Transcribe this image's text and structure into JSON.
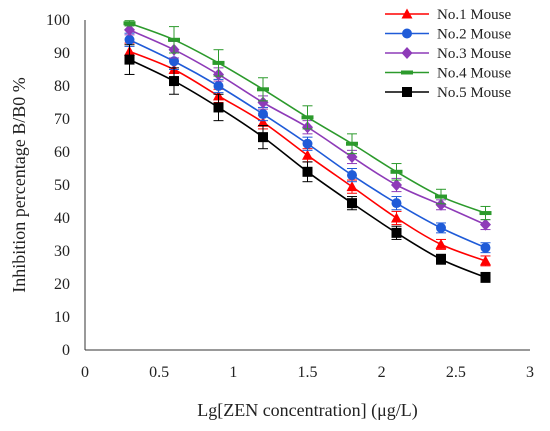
{
  "chart_data": {
    "type": "line",
    "xlabel": "Lg[ZEN concentration] (μg/L)",
    "ylabel": "Inhibition percentage B/B0 %",
    "xlim": [
      0,
      3
    ],
    "ylim": [
      0,
      100
    ],
    "x_ticks": [
      0,
      0.5,
      1,
      1.5,
      2,
      2.5,
      3
    ],
    "x_tick_labels": [
      "0",
      "0.5",
      "1",
      "1.5",
      "2",
      "2.5",
      "3"
    ],
    "y_ticks": [
      0,
      10,
      20,
      30,
      40,
      50,
      60,
      70,
      80,
      90,
      100
    ],
    "y_tick_labels": [
      "0",
      "10",
      "20",
      "30",
      "40",
      "50",
      "60",
      "70",
      "80",
      "90",
      "100"
    ],
    "grid": false,
    "legend_position": "top-right",
    "x": [
      0.3,
      0.6,
      0.9,
      1.2,
      1.5,
      1.8,
      2.1,
      2.4,
      2.7
    ],
    "series": [
      {
        "name": "No.1 Mouse",
        "color": "#ff0000",
        "marker": "triangle",
        "values": [
          90.5,
          85,
          77,
          69,
          59,
          49.5,
          40,
          32,
          27
        ],
        "errors": [
          2.5,
          2.5,
          2,
          2,
          2,
          2,
          2,
          1.5,
          1.5
        ]
      },
      {
        "name": "No.2 Mouse",
        "color": "#1f5bd8",
        "marker": "circle",
        "values": [
          94,
          87.5,
          80,
          71.5,
          62.5,
          53,
          44.5,
          37,
          31
        ],
        "errors": [
          2,
          2.5,
          2,
          2,
          2,
          2,
          2,
          1.5,
          1.5
        ]
      },
      {
        "name": "No.3 Mouse",
        "color": "#8e3bb8",
        "marker": "diamond",
        "values": [
          97,
          91,
          83.5,
          75,
          67.5,
          58.5,
          50,
          44,
          38
        ],
        "errors": [
          1.5,
          2.5,
          2,
          2,
          2,
          2,
          2,
          1.5,
          1.5
        ]
      },
      {
        "name": "No.4 Mouse",
        "color": "#2c9a2c",
        "marker": "dash",
        "values": [
          99,
          94,
          87,
          79,
          70.5,
          62.5,
          54,
          46.5,
          41.5
        ],
        "errors": [
          0.8,
          4,
          4,
          3.5,
          3.5,
          3,
          2.5,
          2.2,
          2
        ]
      },
      {
        "name": "No.5 Mouse",
        "color": "#000000",
        "marker": "square",
        "values": [
          88,
          81.5,
          73.5,
          64.5,
          54,
          44.5,
          35.5,
          27.5,
          22
        ],
        "errors": [
          4.5,
          4,
          4,
          3.5,
          3,
          2,
          2,
          1.5,
          1.5
        ]
      }
    ]
  }
}
